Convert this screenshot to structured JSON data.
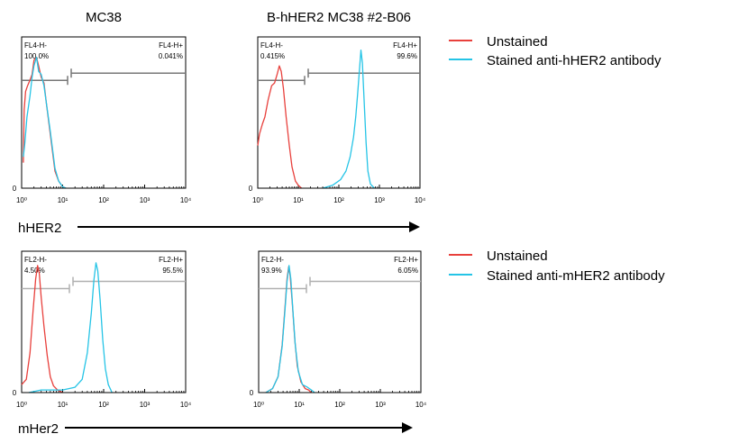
{
  "colors": {
    "unstained": "#e8403c",
    "stained": "#25c4e6",
    "gate": "#777777",
    "gate_light": "#b0b0b0",
    "frame": "#000000"
  },
  "column_titles": [
    "MC38",
    "B-hHER2 MC38 #2-B06"
  ],
  "row_axis_labels": [
    "hHER2",
    "mHer2"
  ],
  "legends": [
    {
      "items": [
        {
          "label": "Unstained",
          "series": "unstained"
        },
        {
          "label": "Stained anti-hHER2 antibody",
          "series": "stained"
        }
      ]
    },
    {
      "items": [
        {
          "label": "Unstained",
          "series": "unstained"
        },
        {
          "label": "Stained anti-mHER2 antibody",
          "series": "stained"
        }
      ]
    }
  ],
  "chart_data": [
    {
      "type": "area",
      "column": "MC38",
      "marker": "hHER2",
      "xscale": "log",
      "xlim": [
        1,
        10000
      ],
      "y_zero_label": "0",
      "x_ticks": [
        "10⁰",
        "10¹",
        "10²",
        "10³",
        "10⁴"
      ],
      "gates": [
        {
          "name": "FL4-H-",
          "value": "100.0%"
        },
        {
          "name": "FL4-H+",
          "value": "0.041%"
        }
      ],
      "series": [
        {
          "name": "Unstained",
          "color_key": "unstained",
          "points": [
            [
              1.1,
              0.18
            ],
            [
              1.15,
              0.55
            ],
            [
              1.25,
              0.68
            ],
            [
              1.4,
              0.72
            ],
            [
              1.6,
              0.76
            ],
            [
              1.8,
              0.8
            ],
            [
              2.0,
              0.9
            ],
            [
              2.3,
              0.92
            ],
            [
              2.6,
              0.86
            ],
            [
              3.0,
              0.78
            ],
            [
              3.5,
              0.74
            ],
            [
              4.0,
              0.6
            ],
            [
              5.0,
              0.38
            ],
            [
              6.5,
              0.12
            ],
            [
              8,
              0.05
            ],
            [
              10,
              0.01
            ],
            [
              12,
              0.0
            ]
          ]
        },
        {
          "name": "Stained anti-hHER2 antibody",
          "color_key": "stained",
          "points": [
            [
              1.1,
              0.22
            ],
            [
              1.2,
              0.32
            ],
            [
              1.35,
              0.5
            ],
            [
              1.6,
              0.65
            ],
            [
              1.8,
              0.78
            ],
            [
              2.0,
              0.86
            ],
            [
              2.3,
              0.92
            ],
            [
              2.6,
              0.82
            ],
            [
              3.0,
              0.8
            ],
            [
              3.5,
              0.72
            ],
            [
              4.0,
              0.6
            ],
            [
              5.0,
              0.4
            ],
            [
              6.5,
              0.14
            ],
            [
              8,
              0.05
            ],
            [
              10,
              0.01
            ],
            [
              12,
              0.0
            ]
          ]
        }
      ]
    },
    {
      "type": "area",
      "column": "B-hHER2 MC38 #2-B06",
      "marker": "hHER2",
      "xscale": "log",
      "xlim": [
        1,
        10000
      ],
      "y_zero_label": "0",
      "x_ticks": [
        "10⁰",
        "10¹",
        "10²",
        "10³",
        "10⁴"
      ],
      "gates": [
        {
          "name": "FL4-H-",
          "value": "0.415%"
        },
        {
          "name": "FL4-H+",
          "value": "99.6%"
        }
      ],
      "series": [
        {
          "name": "Unstained",
          "color_key": "unstained",
          "points": [
            [
              1.0,
              0.3
            ],
            [
              1.1,
              0.38
            ],
            [
              1.3,
              0.45
            ],
            [
              1.5,
              0.5
            ],
            [
              1.8,
              0.62
            ],
            [
              2.2,
              0.72
            ],
            [
              2.6,
              0.74
            ],
            [
              3.0,
              0.8
            ],
            [
              3.4,
              0.86
            ],
            [
              3.8,
              0.82
            ],
            [
              4.3,
              0.7
            ],
            [
              5.0,
              0.5
            ],
            [
              6.0,
              0.3
            ],
            [
              7.0,
              0.15
            ],
            [
              8.5,
              0.05
            ],
            [
              10,
              0.02
            ],
            [
              12,
              0.0
            ]
          ]
        },
        {
          "name": "Stained anti-hHER2 antibody",
          "color_key": "stained",
          "points": [
            [
              40,
              0.0
            ],
            [
              70,
              0.02
            ],
            [
              110,
              0.06
            ],
            [
              150,
              0.12
            ],
            [
              190,
              0.22
            ],
            [
              230,
              0.36
            ],
            [
              260,
              0.5
            ],
            [
              290,
              0.66
            ],
            [
              320,
              0.82
            ],
            [
              350,
              0.97
            ],
            [
              380,
              0.88
            ],
            [
              420,
              0.62
            ],
            [
              470,
              0.32
            ],
            [
              520,
              0.12
            ],
            [
              600,
              0.03
            ],
            [
              750,
              0.0
            ]
          ]
        }
      ]
    },
    {
      "type": "area",
      "column": "MC38",
      "marker": "mHer2",
      "xscale": "log",
      "xlim": [
        1,
        10000
      ],
      "y_zero_label": "0",
      "x_ticks": [
        "10⁰",
        "10¹",
        "10²",
        "10³",
        "10⁴"
      ],
      "gates": [
        {
          "name": "FL2-H-",
          "value": "4.50%"
        },
        {
          "name": "FL2-H+",
          "value": "95.5%"
        }
      ],
      "series": [
        {
          "name": "Unstained",
          "color_key": "unstained",
          "points": [
            [
              1.0,
              0.06
            ],
            [
              1.3,
              0.1
            ],
            [
              1.6,
              0.3
            ],
            [
              1.9,
              0.62
            ],
            [
              2.2,
              0.86
            ],
            [
              2.45,
              0.96
            ],
            [
              2.7,
              0.9
            ],
            [
              3.0,
              0.72
            ],
            [
              3.5,
              0.5
            ],
            [
              4.2,
              0.28
            ],
            [
              5.0,
              0.12
            ],
            [
              6.0,
              0.05
            ],
            [
              7.5,
              0.02
            ],
            [
              10,
              0.0
            ]
          ]
        },
        {
          "name": "Stained anti-mHER2 antibody",
          "color_key": "stained",
          "points": [
            [
              1.5,
              0.0
            ],
            [
              3,
              0.02
            ],
            [
              10,
              0.02
            ],
            [
              20,
              0.04
            ],
            [
              30,
              0.1
            ],
            [
              40,
              0.3
            ],
            [
              50,
              0.6
            ],
            [
              58,
              0.85
            ],
            [
              65,
              0.98
            ],
            [
              72,
              0.92
            ],
            [
              82,
              0.7
            ],
            [
              95,
              0.4
            ],
            [
              110,
              0.18
            ],
            [
              130,
              0.06
            ],
            [
              160,
              0.0
            ]
          ]
        }
      ]
    },
    {
      "type": "area",
      "column": "B-hHER2 MC38 #2-B06",
      "marker": "mHer2",
      "xscale": "log",
      "xlim": [
        1,
        10000
      ],
      "y_zero_label": "0",
      "x_ticks": [
        "10⁰",
        "10¹",
        "10²",
        "10³",
        "10⁴"
      ],
      "gates": [
        {
          "name": "FL2-H-",
          "value": "93.9%"
        },
        {
          "name": "FL2-H+",
          "value": "6.05%"
        }
      ],
      "series": [
        {
          "name": "Unstained",
          "color_key": "unstained",
          "points": [
            [
              1.5,
              0.0
            ],
            [
              2.2,
              0.03
            ],
            [
              3.0,
              0.12
            ],
            [
              3.8,
              0.36
            ],
            [
              4.5,
              0.66
            ],
            [
              5.0,
              0.86
            ],
            [
              5.5,
              0.95
            ],
            [
              6.0,
              0.88
            ],
            [
              6.8,
              0.66
            ],
            [
              7.8,
              0.4
            ],
            [
              9,
              0.2
            ],
            [
              11,
              0.08
            ],
            [
              14,
              0.03
            ],
            [
              17,
              0.02
            ],
            [
              20,
              0.0
            ]
          ]
        },
        {
          "name": "Stained anti-mHER2 antibody",
          "color_key": "stained",
          "points": [
            [
              1.5,
              0.0
            ],
            [
              2.2,
              0.03
            ],
            [
              3.0,
              0.12
            ],
            [
              3.8,
              0.35
            ],
            [
              4.5,
              0.64
            ],
            [
              5.0,
              0.84
            ],
            [
              5.6,
              0.96
            ],
            [
              6.2,
              0.86
            ],
            [
              7.0,
              0.62
            ],
            [
              8.0,
              0.36
            ],
            [
              9.5,
              0.16
            ],
            [
              12,
              0.06
            ],
            [
              16,
              0.04
            ],
            [
              20,
              0.02
            ],
            [
              24,
              0.0
            ]
          ]
        }
      ]
    }
  ]
}
